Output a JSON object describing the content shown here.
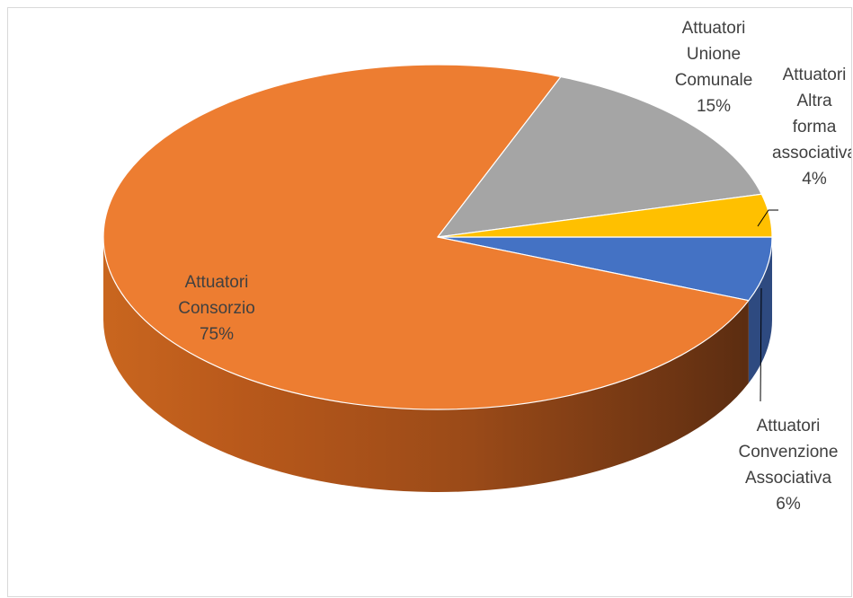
{
  "chart_data": {
    "type": "pie",
    "style": "3d",
    "slices": [
      {
        "category": "Attuatori Convenzione Associativa",
        "lines": [
          "Attuatori",
          "Convenzione",
          "Associativa"
        ],
        "value": 6,
        "label": "6%",
        "color": "#4472C4"
      },
      {
        "category": "Attuatori Consorzio",
        "lines": [
          "Attuatori",
          "Consorzio"
        ],
        "value": 75,
        "label": "75%",
        "color": "#ED7D31"
      },
      {
        "category": "Attuatori Unione Comunale",
        "lines": [
          "Attuatori",
          "Unione",
          "Comunale"
        ],
        "value": 15,
        "label": "15%",
        "color": "#A5A5A5"
      },
      {
        "category": "Attuatori Altra forma associativa",
        "lines": [
          "Attuatori",
          "Altra",
          "forma",
          "associativa"
        ],
        "value": 4,
        "label": "4%",
        "color": "#FFC000"
      }
    ]
  }
}
